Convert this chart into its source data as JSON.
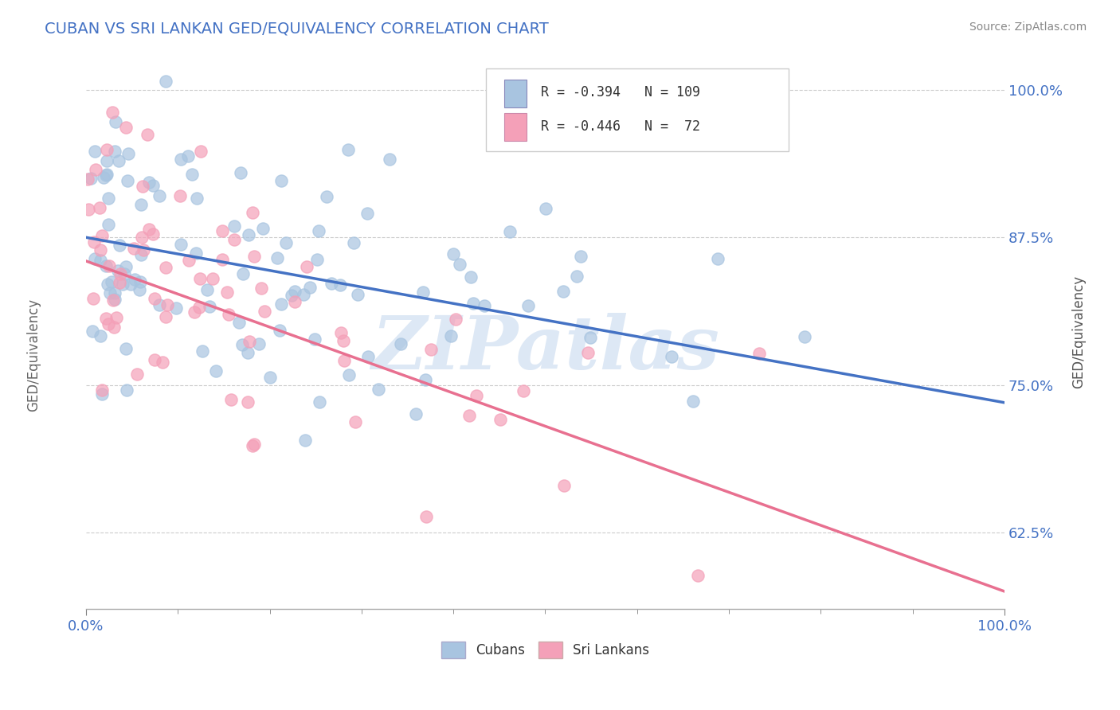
{
  "title": "CUBAN VS SRI LANKAN GED/EQUIVALENCY CORRELATION CHART",
  "source": "Source: ZipAtlas.com",
  "ylabel": "GED/Equivalency",
  "xlim": [
    0.0,
    1.0
  ],
  "ylim": [
    0.56,
    1.03
  ],
  "yticks": [
    0.625,
    0.75,
    0.875,
    1.0
  ],
  "ytick_labels": [
    "62.5%",
    "75.0%",
    "87.5%",
    "100.0%"
  ],
  "xtick_labels": [
    "0.0%",
    "100.0%"
  ],
  "cuban_R": -0.394,
  "cuban_N": 109,
  "srilankan_R": -0.446,
  "srilankan_N": 72,
  "cuban_color": "#a8c4e0",
  "srilankan_color": "#f4a0b8",
  "cuban_line_color": "#4472c4",
  "srilankan_line_color": "#e87090",
  "background_color": "#ffffff",
  "grid_color": "#cccccc",
  "title_color": "#4472c4",
  "watermark_text": "ZIPatlas",
  "watermark_color": "#dde8f5",
  "cuban_line_start_y": 0.875,
  "cuban_line_end_y": 0.735,
  "srilankan_line_start_y": 0.855,
  "srilankan_line_end_y": 0.575
}
